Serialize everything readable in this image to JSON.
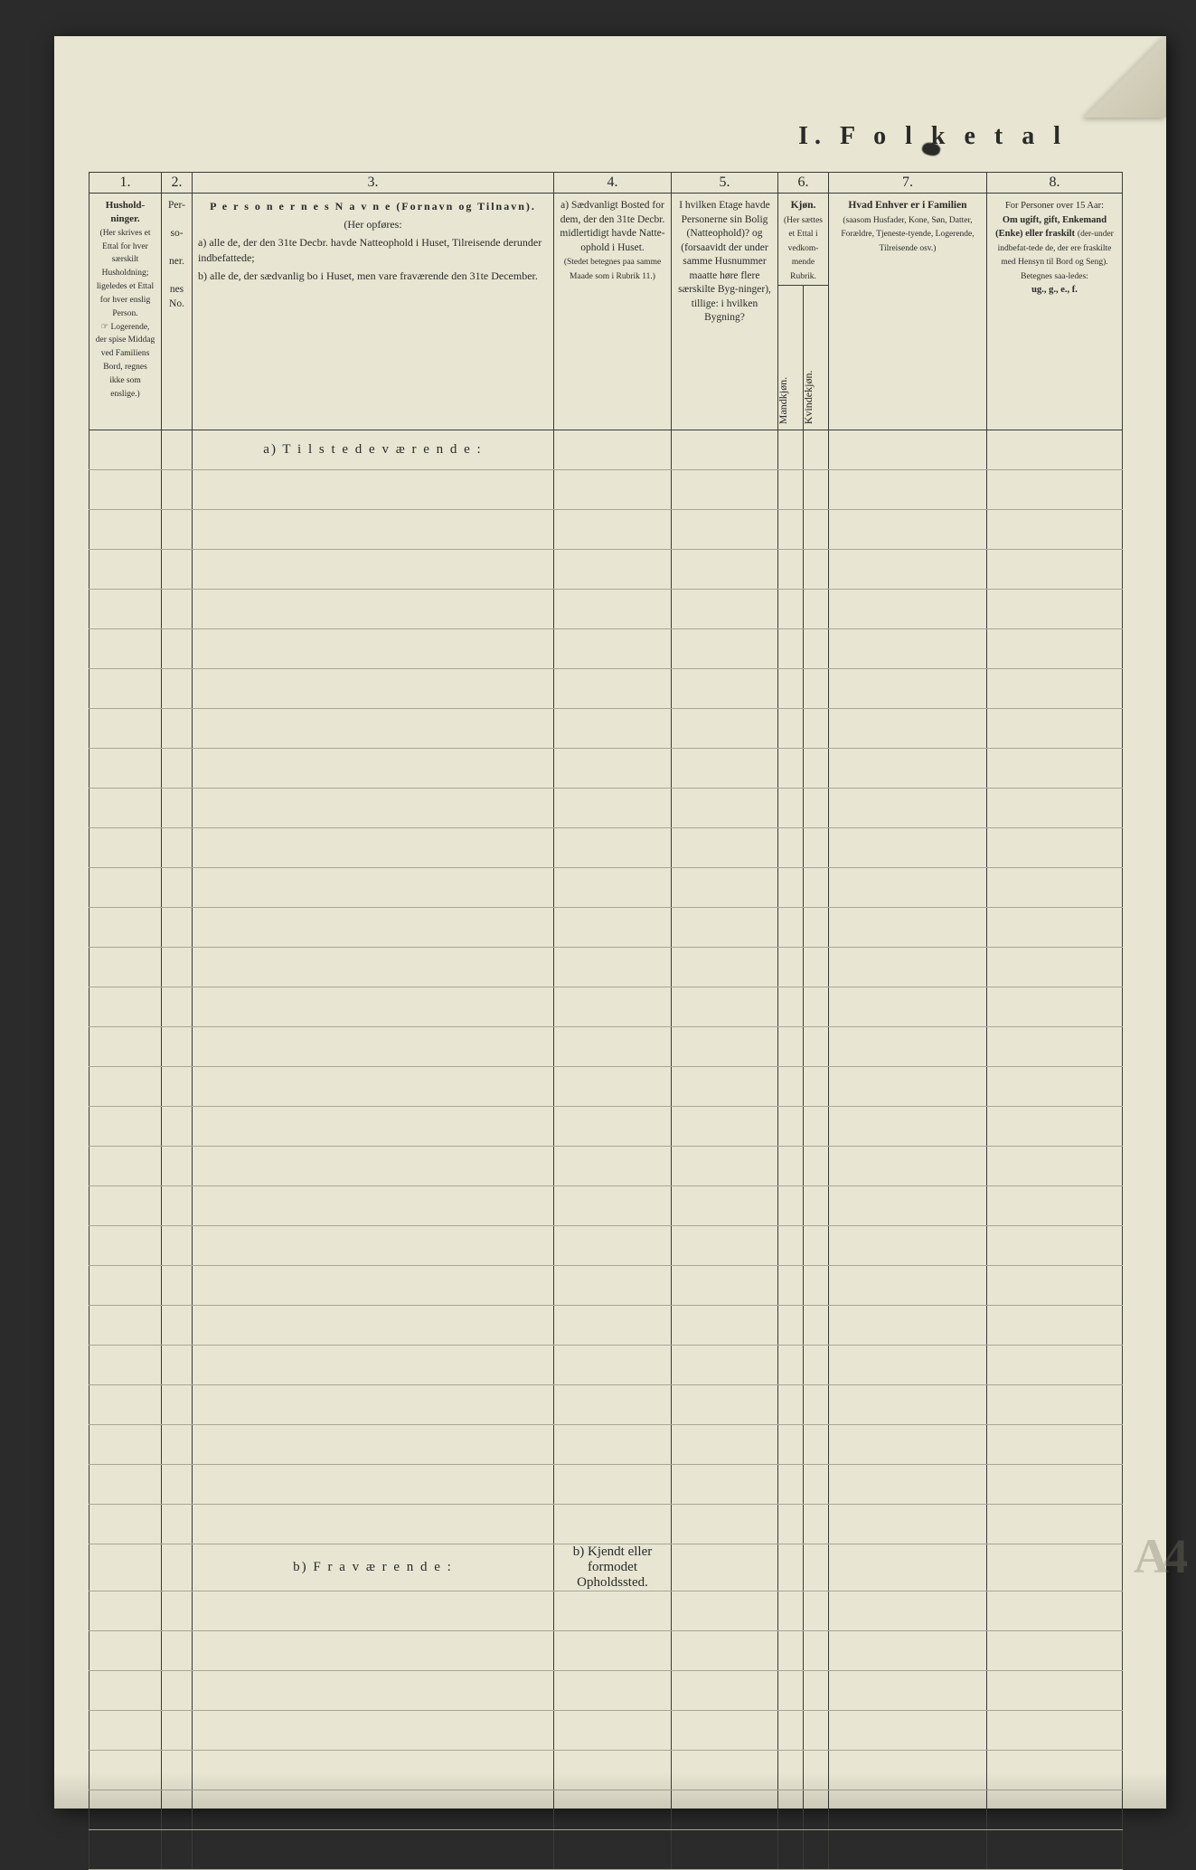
{
  "page_title": "I.  F o l k e t a l",
  "col_numbers": [
    "1.",
    "2.",
    "3.",
    "4.",
    "5.",
    "6.",
    "7.",
    "8."
  ],
  "headers": {
    "c1": {
      "title": "Hushold-\nninger.",
      "body": "(Her skrives et Ettal for hver særskilt Husholdning; ligeledes et Ettal for hver enslig Person.",
      "note": "☞ Logerende, der spise Middag ved Familiens Bord, regnes ikke som enslige.)"
    },
    "c2": {
      "top": "Per-",
      "mid": "so-",
      "bot": "ner.",
      "foot": "nes No."
    },
    "c3": {
      "title": "P e r s o n e r n e s   N a v n e  (Fornavn og Tilnavn).",
      "sub": "(Her opføres:",
      "a": "a)  alle de, der den 31te Decbr. havde Natteophold i Huset, Tilreisende derunder indbefattede;",
      "b": "b)  alle de, der sædvanlig bo i Huset, men vare fraværende den 31te December."
    },
    "c4": {
      "lead": "a)  Sædvanligt Bosted for dem, der den 31te Decbr. midlertidigt havde Natte-ophold i Huset.",
      "tail": "(Stedet betegnes paa samme Maade som i Rubrik 11.)"
    },
    "c5": "I hvilken Etage havde Personerne sin Bolig (Natteophold)? og (forsaavidt der under samme Husnummer maatte høre flere særskilte Byg-ninger), tillige: i hvilken Bygning?",
    "c6": {
      "title": "Kjøn.",
      "body": "(Her sættes et Ettal i vedkom-mende Rubrik.",
      "left_v": "Mandkjøn.",
      "right_v": "Kvindekjøn."
    },
    "c7": {
      "title": "Hvad Enhver er i Familien",
      "body": "(saasom Husfader, Kone, Søn, Datter, Forældre, Tjeneste-tyende, Logerende, Tilreisende osv.)"
    },
    "c8": {
      "lead": "For Personer over 15 Aar:",
      "strong": "Om ugift, gift, Enkemand (Enke) eller fraskilt",
      "mid": "(der-under indbefat-tede de, der ere fraskilte med Hensyn til Bord og Seng).",
      "foot": "Betegnes saa-ledes:",
      "codes": "ug., g., e., f."
    }
  },
  "section_a": "a)  T i l s t e d e v æ r e n d e :",
  "section_b": "b)  F r a v æ r e n d e :",
  "section_b_col4": "b) Kjendt eller formodet Opholdssted.",
  "rows_before_b": 27,
  "rows_after_b": 7,
  "colors": {
    "paper": "#e8e5d2",
    "ink": "#2a2a28",
    "rule": "#a9a696",
    "heavy": "#3a3a36",
    "canvas": "#2b2b2b"
  }
}
